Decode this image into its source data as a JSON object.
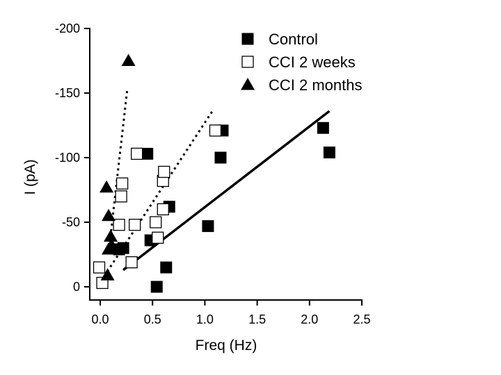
{
  "chart_data": {
    "type": "scatter",
    "xlabel": "Freq (Hz)",
    "ylabel": "I (pA)",
    "xlim": [
      -0.1,
      2.5
    ],
    "ylim": [
      0,
      -200
    ],
    "x_ticks": [
      {
        "value": 0.0,
        "label": "0.0"
      },
      {
        "value": 0.5,
        "label": "0.5"
      },
      {
        "value": 1.0,
        "label": "1.0"
      },
      {
        "value": 1.5,
        "label": "1.5"
      },
      {
        "value": 2.0,
        "label": "2.0"
      },
      {
        "value": 2.5,
        "label": "2.5"
      }
    ],
    "y_ticks": [
      {
        "value": 0,
        "label": "0"
      },
      {
        "value": -50,
        "label": "-50"
      },
      {
        "value": -100,
        "label": "-100"
      },
      {
        "value": -150,
        "label": "-150"
      },
      {
        "value": -200,
        "label": "-200"
      }
    ],
    "legend_position": "top-right",
    "series": [
      {
        "name": "Control",
        "marker": "filled-square",
        "color": "#000000",
        "points": [
          [
            0.18,
            -29
          ],
          [
            0.22,
            -30
          ],
          [
            0.45,
            -103
          ],
          [
            0.48,
            -36
          ],
          [
            0.54,
            0
          ],
          [
            0.63,
            -15
          ],
          [
            0.66,
            -62
          ],
          [
            1.03,
            -47
          ],
          [
            1.15,
            -100
          ],
          [
            1.17,
            -121
          ],
          [
            2.13,
            -123
          ],
          [
            2.19,
            -104
          ]
        ],
        "fit": {
          "style": "solid",
          "x": [
            0.22,
            2.19
          ],
          "y": [
            -13,
            -136
          ]
        }
      },
      {
        "name": "CCI 2 weeks",
        "marker": "open-square",
        "color": "#000000",
        "points": [
          [
            -0.01,
            -15
          ],
          [
            0.02,
            -3
          ],
          [
            0.18,
            -48
          ],
          [
            0.2,
            -70
          ],
          [
            0.21,
            -80
          ],
          [
            0.3,
            -19
          ],
          [
            0.33,
            -48
          ],
          [
            0.35,
            -103
          ],
          [
            0.53,
            -50
          ],
          [
            0.55,
            -38
          ],
          [
            0.6,
            -60
          ],
          [
            0.6,
            -82
          ],
          [
            0.61,
            -89
          ],
          [
            1.1,
            -121
          ]
        ],
        "fit": {
          "style": "dotted",
          "x": [
            -0.02,
            1.08
          ],
          "y": [
            -1,
            -137
          ]
        }
      },
      {
        "name": "CCI 2 months",
        "marker": "filled-triangle",
        "color": "#000000",
        "points": [
          [
            0.06,
            -77
          ],
          [
            0.07,
            -9
          ],
          [
            0.08,
            -29
          ],
          [
            0.08,
            -55
          ],
          [
            0.1,
            -39
          ],
          [
            0.11,
            -32
          ],
          [
            0.27,
            -175
          ]
        ],
        "fit": {
          "style": "dotted",
          "x": [
            0.08,
            0.26
          ],
          "y": [
            -26,
            -154
          ]
        }
      }
    ]
  }
}
